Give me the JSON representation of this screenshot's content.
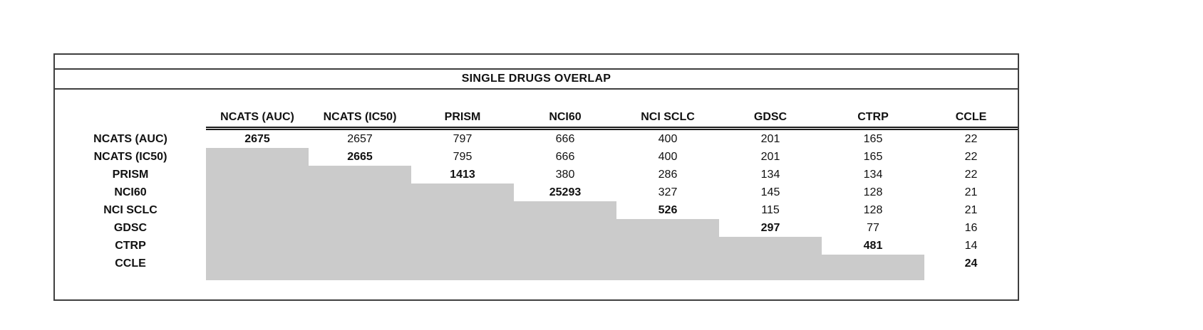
{
  "title": "SINGLE DRUGS OVERLAP",
  "colors": {
    "shaded_cell": "#cbcbcb",
    "border": "#3f3f3f",
    "text": "#111111"
  },
  "chart_data": {
    "type": "table",
    "title": "SINGLE DRUGS OVERLAP",
    "columns": [
      "NCATS (AUC)",
      "NCATS (IC50)",
      "PRISM",
      "NCI60",
      "NCI SCLC",
      "GDSC",
      "CTRP",
      "CCLE"
    ],
    "rows": [
      {
        "label": "NCATS (AUC)",
        "values": [
          "2675",
          "2657",
          "797",
          "666",
          "400",
          "201",
          "165",
          "22"
        ]
      },
      {
        "label": "NCATS (IC50)",
        "values": [
          "",
          "2665",
          "795",
          "666",
          "400",
          "201",
          "165",
          "22"
        ]
      },
      {
        "label": "PRISM",
        "values": [
          "",
          "",
          "1413",
          "380",
          "286",
          "134",
          "134",
          "22"
        ]
      },
      {
        "label": "NCI60",
        "values": [
          "",
          "",
          "",
          "25293",
          "327",
          "145",
          "128",
          "21"
        ]
      },
      {
        "label": "NCI SCLC",
        "values": [
          "",
          "",
          "",
          "",
          "526",
          "115",
          "128",
          "21"
        ]
      },
      {
        "label": "GDSC",
        "values": [
          "",
          "",
          "",
          "",
          "",
          "297",
          "77",
          "16"
        ]
      },
      {
        "label": "CTRP",
        "values": [
          "",
          "",
          "",
          "",
          "",
          "",
          "481",
          "14"
        ]
      },
      {
        "label": "CCLE",
        "values": [
          "",
          "",
          "",
          "",
          "",
          "",
          "",
          "24"
        ]
      }
    ],
    "notes": {
      "diagonal_bold": true,
      "lower_triangle_shaded": true
    }
  }
}
